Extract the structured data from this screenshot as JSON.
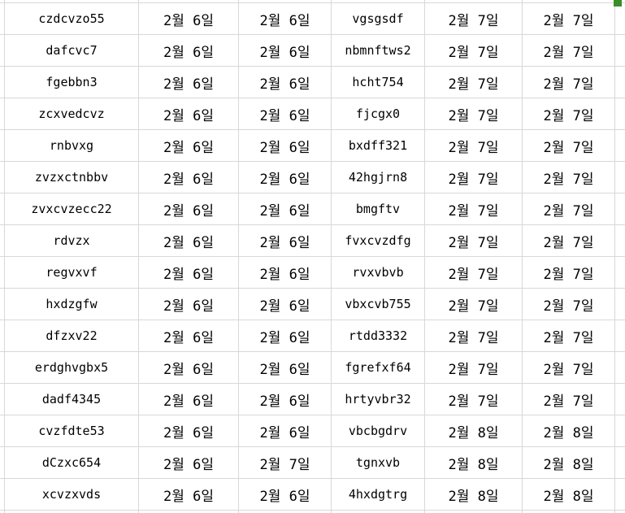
{
  "colors": {
    "background": "#ffffff",
    "gridline": "#d8d8d8",
    "text": "#000000",
    "fill_handle_green": "#3a8e28"
  },
  "table": {
    "rows": [
      [
        "czdcvzo55",
        "2월 6일",
        "2월 6일",
        "vgsgsdf",
        "2월 7일",
        "2월 7일"
      ],
      [
        "dafcvc7",
        "2월 6일",
        "2월 6일",
        "nbmnftws2",
        "2월 7일",
        "2월 7일"
      ],
      [
        "fgebbn3",
        "2월 6일",
        "2월 6일",
        "hcht754",
        "2월 7일",
        "2월 7일"
      ],
      [
        "zcxvedcvz",
        "2월 6일",
        "2월 6일",
        "fjcgx0",
        "2월 7일",
        "2월 7일"
      ],
      [
        "rnbvxg",
        "2월 6일",
        "2월 6일",
        "bxdff321",
        "2월 7일",
        "2월 7일"
      ],
      [
        "zvzxctnbbv",
        "2월 6일",
        "2월 6일",
        "42hgjrn8",
        "2월 7일",
        "2월 7일"
      ],
      [
        "zvxcvzecc22",
        "2월 6일",
        "2월 6일",
        "bmgftv",
        "2월 7일",
        "2월 7일"
      ],
      [
        "rdvzx",
        "2월 6일",
        "2월 6일",
        "fvxcvzdfg",
        "2월 7일",
        "2월 7일"
      ],
      [
        "regvxvf",
        "2월 6일",
        "2월 6일",
        "rvxvbvb",
        "2월 7일",
        "2월 7일"
      ],
      [
        "hxdzgfw",
        "2월 6일",
        "2월 6일",
        "vbxcvb755",
        "2월 7일",
        "2월 7일"
      ],
      [
        "dfzxv22",
        "2월 6일",
        "2월 6일",
        "rtdd3332",
        "2월 7일",
        "2월 7일"
      ],
      [
        "erdghvgbx5",
        "2월 6일",
        "2월 6일",
        "fgrefxf64",
        "2월 7일",
        "2월 7일"
      ],
      [
        "dadf4345",
        "2월 6일",
        "2월 6일",
        "hrtyvbr32",
        "2월 7일",
        "2월 7일"
      ],
      [
        "cvzfdte53",
        "2월 6일",
        "2월 6일",
        "vbcbgdrv",
        "2월 8일",
        "2월 8일"
      ],
      [
        "dCzxc654",
        "2월 6일",
        "2월 7일",
        "tgnxvb",
        "2월 8일",
        "2월 8일"
      ],
      [
        "xcvzxvds",
        "2월 6일",
        "2월 6일",
        "4hxdgtrg",
        "2월 8일",
        "2월 8일"
      ]
    ]
  }
}
